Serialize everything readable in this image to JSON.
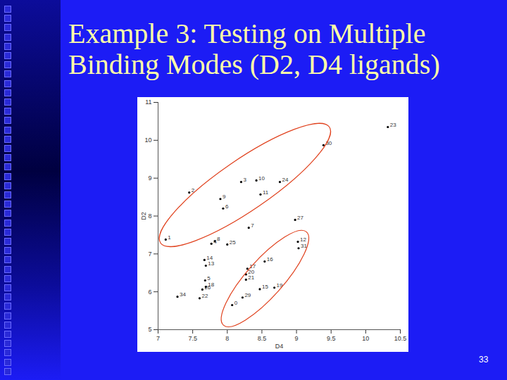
{
  "title": "Example 3: Testing on Multiple Binding Modes (D2, D4 ligands)",
  "page_number": "33",
  "chart_data": {
    "type": "scatter",
    "x_label": "D4",
    "y_label": "D2",
    "color": "#000000",
    "points": [
      {
        "label": "23",
        "x": 10.32,
        "y": 10.35
      },
      {
        "label": "30",
        "x": 9.39,
        "y": 9.87
      },
      {
        "label": "3",
        "x": 8.2,
        "y": 8.9
      },
      {
        "label": "10",
        "x": 8.42,
        "y": 8.94
      },
      {
        "label": "24",
        "x": 8.76,
        "y": 8.9
      },
      {
        "label": "2",
        "x": 7.45,
        "y": 8.62
      },
      {
        "label": "11",
        "x": 8.48,
        "y": 8.57
      },
      {
        "label": "9",
        "x": 7.9,
        "y": 8.45
      },
      {
        "label": "6",
        "x": 7.94,
        "y": 8.2
      },
      {
        "label": "7",
        "x": 8.31,
        "y": 7.69
      },
      {
        "label": "27",
        "x": 8.98,
        "y": 7.9
      },
      {
        "label": "1",
        "x": 7.11,
        "y": 7.38
      },
      {
        "label": "12",
        "x": 9.02,
        "y": 7.32
      },
      {
        "label": "31",
        "x": 9.03,
        "y": 7.15
      },
      {
        "label": "8",
        "x": 7.82,
        "y": 7.34
      },
      {
        "label": "4",
        "x": 7.77,
        "y": 7.27
      },
      {
        "label": "25",
        "x": 8.0,
        "y": 7.25
      },
      {
        "label": "14",
        "x": 7.67,
        "y": 6.84
      },
      {
        "label": "13",
        "x": 7.69,
        "y": 6.69
      },
      {
        "label": "16",
        "x": 8.54,
        "y": 6.8
      },
      {
        "label": "17",
        "x": 8.29,
        "y": 6.61
      },
      {
        "label": "20",
        "x": 8.27,
        "y": 6.46
      },
      {
        "label": "21",
        "x": 8.27,
        "y": 6.32
      },
      {
        "label": "5",
        "x": 7.68,
        "y": 6.3
      },
      {
        "label": "18",
        "x": 7.69,
        "y": 6.13
      },
      {
        "label": "26",
        "x": 7.64,
        "y": 6.06
      },
      {
        "label": "15",
        "x": 8.47,
        "y": 6.07
      },
      {
        "label": "19",
        "x": 8.68,
        "y": 6.11
      },
      {
        "label": "34",
        "x": 7.28,
        "y": 5.87
      },
      {
        "label": "22",
        "x": 7.6,
        "y": 5.83
      },
      {
        "label": "29",
        "x": 8.22,
        "y": 5.85
      },
      {
        "label": "0",
        "x": 8.07,
        "y": 5.65
      }
    ],
    "xlim": [
      7,
      10.5
    ],
    "xticks": [
      7,
      7.5,
      8,
      8.5,
      9,
      9.5,
      10,
      10.5
    ],
    "ylim": [
      5,
      11
    ],
    "yticks": [
      5,
      6,
      7,
      8,
      9,
      10,
      11
    ],
    "grid": false,
    "ellipses": [
      {
        "x": [
          7.04,
          9.48
        ],
        "y": [
          7.28,
          10.34
        ],
        "color": "#e0401c"
      },
      {
        "x": [
          7.95,
          9.15
        ],
        "y": [
          5.11,
          7.57
        ],
        "color": "#e0401c"
      }
    ]
  }
}
